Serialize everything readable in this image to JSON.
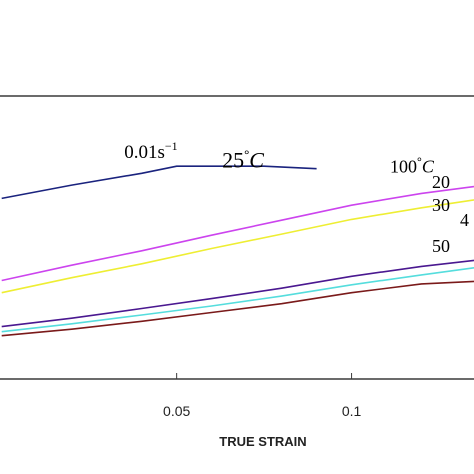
{
  "chart_data": {
    "type": "line",
    "title": "",
    "xlabel": "TRUE STRAIN",
    "ylabel": "",
    "xlim": [
      -0.0005,
      0.135
    ],
    "ylim": [
      0,
      1
    ],
    "xticks": [
      {
        "value": 0.05,
        "label": "0.05"
      },
      {
        "value": 0.1,
        "label": "0.1"
      }
    ],
    "grid": false,
    "annotations": [
      {
        "id": "rate",
        "text": "0.01s",
        "sup": "−1",
        "x": 0.035,
        "y": 0.781
      },
      {
        "id": "t25",
        "text": "25",
        "deg": "°",
        "unit": "C",
        "x": 0.063,
        "y": 0.747
      },
      {
        "id": "t100",
        "text": "100",
        "deg": "°",
        "unit": "C",
        "x": 0.111,
        "y": 0.73
      },
      {
        "id": "t200",
        "text": "20",
        "x": 0.123,
        "y": 0.675
      },
      {
        "id": "t300",
        "text": "30",
        "x": 0.123,
        "y": 0.593
      },
      {
        "id": "t400",
        "text": "4",
        "x": 0.131,
        "y": 0.541
      },
      {
        "id": "t500",
        "text": "50",
        "x": 0.123,
        "y": 0.448
      }
    ],
    "series": [
      {
        "color": "#1a237e",
        "x": [
          0,
          0.02,
          0.04,
          0.05,
          0.06,
          0.075,
          0.09
        ],
        "y": [
          0.638,
          0.685,
          0.727,
          0.752,
          0.752,
          0.752,
          0.743
        ]
      },
      {
        "color": "#cc44ee",
        "x": [
          0,
          0.02,
          0.04,
          0.06,
          0.08,
          0.1,
          0.12,
          0.135
        ],
        "y": [
          0.348,
          0.402,
          0.453,
          0.508,
          0.561,
          0.614,
          0.656,
          0.68
        ]
      },
      {
        "color": "#eeee33",
        "x": [
          0,
          0.02,
          0.04,
          0.06,
          0.08,
          0.1,
          0.12,
          0.135
        ],
        "y": [
          0.305,
          0.358,
          0.407,
          0.461,
          0.512,
          0.564,
          0.605,
          0.633
        ]
      },
      {
        "color": "#4a1890",
        "x": [
          0,
          0.02,
          0.04,
          0.06,
          0.08,
          0.1,
          0.12,
          0.135
        ],
        "y": [
          0.185,
          0.215,
          0.249,
          0.284,
          0.321,
          0.363,
          0.398,
          0.419
        ]
      },
      {
        "color": "#55dddd",
        "x": [
          0,
          0.02,
          0.04,
          0.06,
          0.08,
          0.1,
          0.12,
          0.135
        ],
        "y": [
          0.167,
          0.195,
          0.226,
          0.258,
          0.293,
          0.333,
          0.368,
          0.393
        ]
      },
      {
        "color": "#7a1a1a",
        "x": [
          0,
          0.02,
          0.04,
          0.06,
          0.08,
          0.1,
          0.12,
          0.135
        ],
        "y": [
          0.153,
          0.176,
          0.204,
          0.235,
          0.266,
          0.305,
          0.336,
          0.345
        ]
      }
    ]
  }
}
